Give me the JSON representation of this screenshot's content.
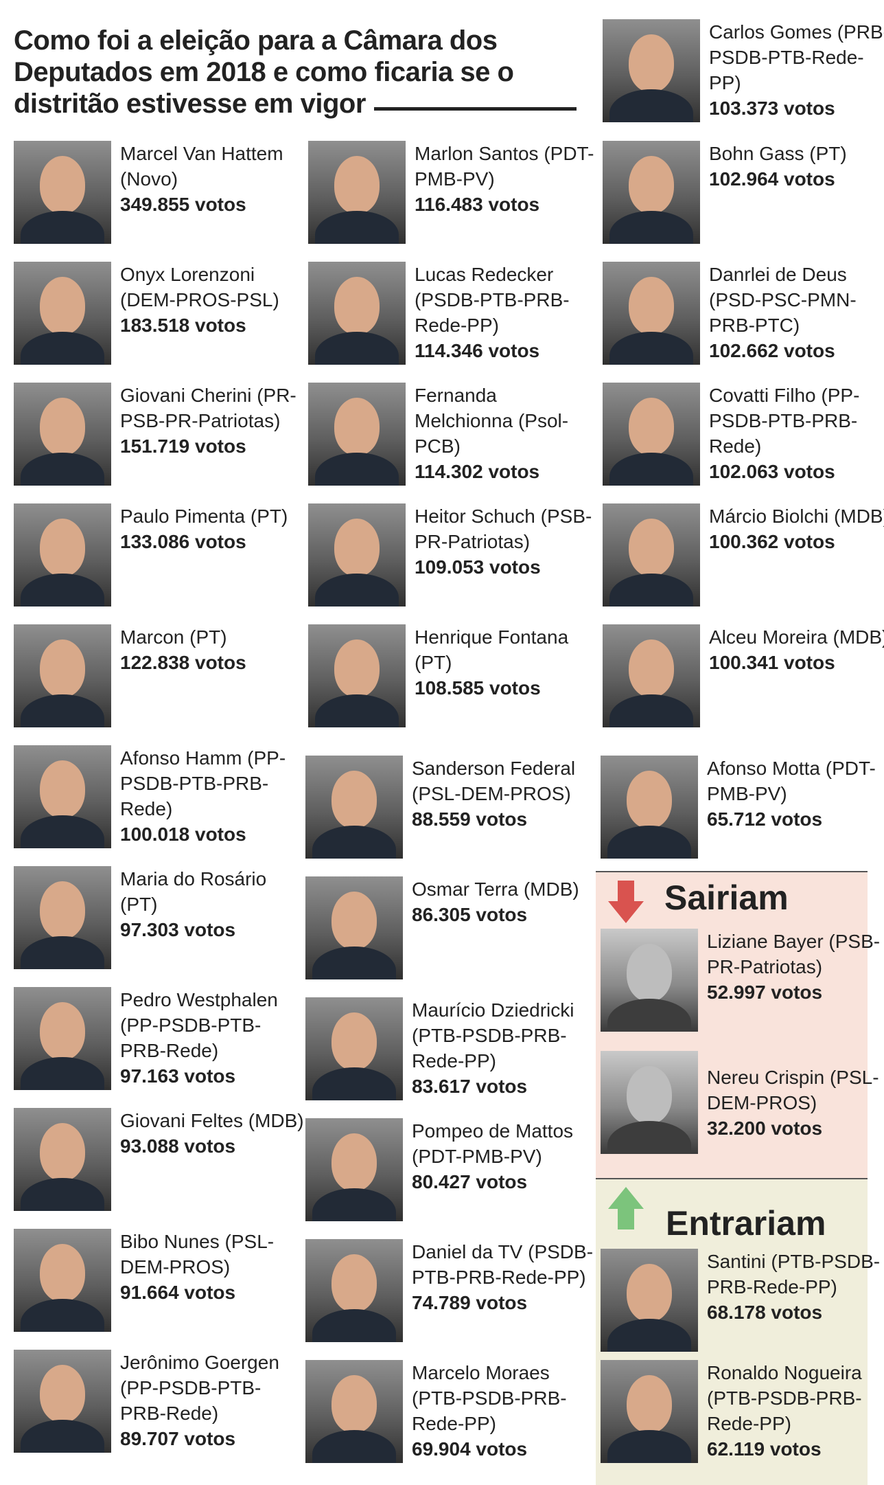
{
  "title": "Como foi a eleição para a Câmara dos Deputados em 2018 e como ficaria se o distritão estivesse em vigor",
  "columns": [
    [
      {
        "name": "Marcel Van Hattem (Novo)",
        "votes": "349.855 votos"
      },
      {
        "name": "Onyx Lorenzoni (DEM-PROS-PSL)",
        "votes": "183.518 votos"
      },
      {
        "name": "Giovani Cherini (PR-PSB-PR-Patriotas)",
        "votes": "151.719 votos"
      },
      {
        "name": "Paulo Pimenta (PT)",
        "votes": "133.086 votos"
      },
      {
        "name": "Marcon (PT)",
        "votes": "122.838 votos"
      },
      {
        "name": "Afonso Hamm (PP-PSDB-PTB-PRB-Rede)",
        "votes": "100.018 votos"
      },
      {
        "name": "Maria do Rosário (PT)",
        "votes": "97.303 votos"
      },
      {
        "name": "Pedro Westphalen (PP-PSDB-PTB-PRB-Rede)",
        "votes": "97.163 votos"
      },
      {
        "name": "Giovani Feltes (MDB)",
        "votes": "93.088 votos"
      },
      {
        "name": "Bibo Nunes (PSL-DEM-PROS)",
        "votes": "91.664 votos"
      },
      {
        "name": "Jerônimo Goergen (PP-PSDB-PTB-PRB-Rede)",
        "votes": "89.707 votos"
      }
    ],
    [
      {
        "name": "Marlon Santos (PDT-PMB-PV)",
        "votes": "116.483 votos"
      },
      {
        "name": "Lucas Redecker (PSDB-PTB-PRB-Rede-PP)",
        "votes": "114.346 votos"
      },
      {
        "name": "Fernanda Melchionna (Psol-PCB)",
        "votes": "114.302 votos"
      },
      {
        "name": "Heitor Schuch (PSB-PR-Patriotas)",
        "votes": "109.053 votos"
      },
      {
        "name": "Henrique Fontana (PT)",
        "votes": "108.585 votos"
      },
      {
        "name": "Sanderson Federal (PSL-DEM-PROS)",
        "votes": "88.559 votos"
      },
      {
        "name": "Osmar Terra (MDB)",
        "votes": "86.305 votos"
      },
      {
        "name": "Maurício Dziedricki (PTB-PSDB-PRB-Rede-PP)",
        "votes": "83.617 votos"
      },
      {
        "name": "Pompeo de Mattos (PDT-PMB-PV)",
        "votes": "80.427 votos"
      },
      {
        "name": "Daniel da TV (PSDB-PTB-PRB-Rede-PP)",
        "votes": "74.789 votos"
      },
      {
        "name": "Marcelo Moraes (PTB-PSDB-PRB-Rede-PP)",
        "votes": "69.904 votos"
      }
    ],
    [
      {
        "name": "Carlos Gomes (PRB-PSDB-PTB-Rede-PP)",
        "votes": "103.373 votos"
      },
      {
        "name": "Bohn Gass (PT)",
        "votes": "102.964 votos"
      },
      {
        "name": "Danrlei de Deus (PSD-PSC-PMN-PRB-PTC)",
        "votes": "102.662 votos"
      },
      {
        "name": "Covatti Filho (PP-PSDB-PTB-PRB-Rede)",
        "votes": "102.063 votos"
      },
      {
        "name": "Márcio Biolchi (MDB)",
        "votes": "100.362 votos"
      },
      {
        "name": "Alceu Moreira (MDB)",
        "votes": "100.341 votos"
      },
      {
        "name": "Afonso Motta (PDT-PMB-PV)",
        "votes": "65.712 votos"
      }
    ]
  ],
  "sairiam": {
    "heading": "Sairiam",
    "items": [
      {
        "name": "Liziane Bayer (PSB-PR-Patriotas)",
        "votes": "52.997 votos"
      },
      {
        "name": "Nereu Crispin (PSL-DEM-PROS)",
        "votes": "32.200 votos"
      }
    ]
  },
  "entrariam": {
    "heading": "Entrariam",
    "items": [
      {
        "name": "Santini (PTB-PSDB-PRB-Rede-PP)",
        "votes": "68.178 votos"
      },
      {
        "name": "Ronaldo Nogueira (PTB-PSDB-PRB-Rede-PP)",
        "votes": "62.119 votos"
      }
    ]
  },
  "colors": {
    "down_arrow": "#d9534f",
    "up_arrow": "#7cc47c",
    "sairiam_bg": "#f9e3db",
    "entrariam_bg": "#f0eedb"
  }
}
